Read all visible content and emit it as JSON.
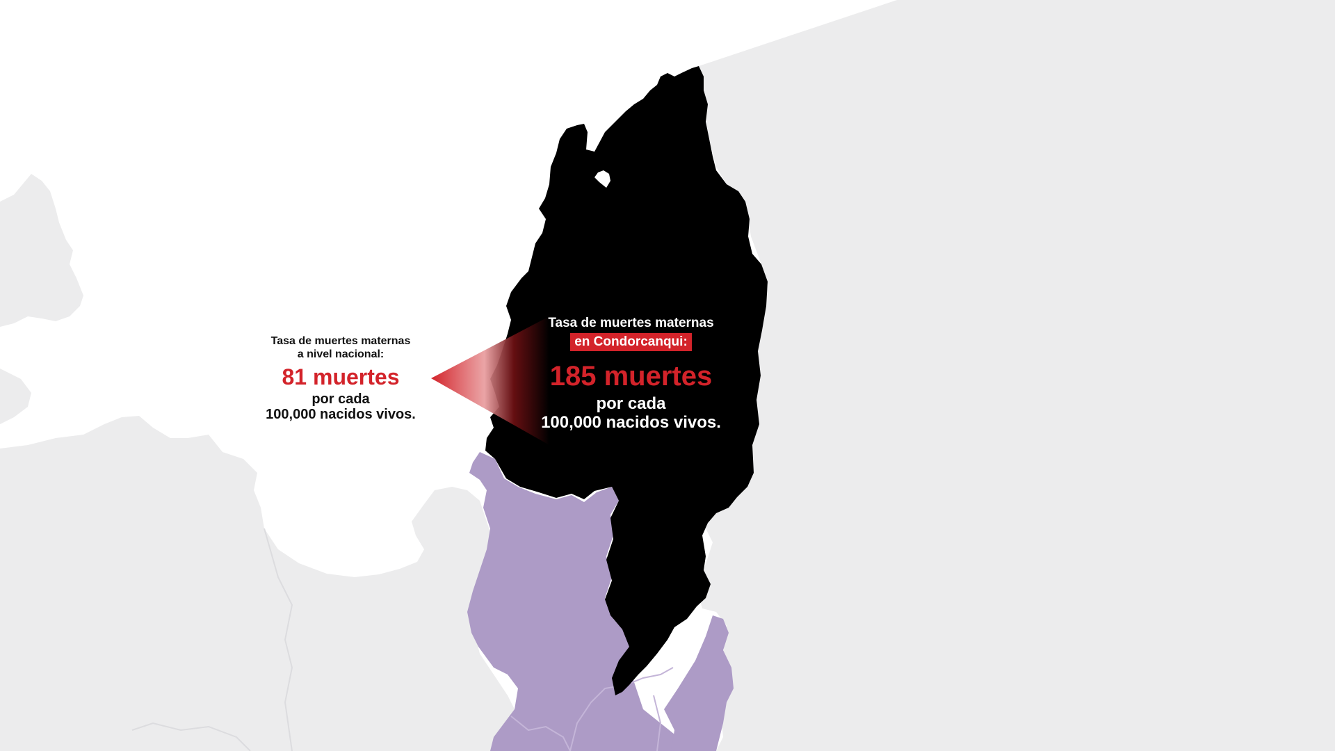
{
  "colors": {
    "background": "#ffffff",
    "land_neighbors": "#ececed",
    "border_lines": "#dcdcdf",
    "highlight_region": "#000000",
    "adjacent_regions": "#ad9bc6",
    "accent_red": "#d3232a",
    "text_dark": "#111111",
    "text_light": "#ffffff"
  },
  "regions": {
    "featured": "Condorcanqui",
    "featured_fill": "highlight_region",
    "neighbors_fill": "adjacent_regions"
  },
  "national": {
    "heading_line1": "Tasa de muertes maternas",
    "heading_line2": "a nivel nacional:",
    "number": "81 muertes",
    "unit_line1": "por cada",
    "unit_line2": "100,000 nacidos vivos."
  },
  "local": {
    "heading_line1": "Tasa de muertes maternas",
    "heading_line2": "en Condorcanqui:",
    "number": "185 muertes",
    "unit_line1": "por cada",
    "unit_line2": "100,000 nacidos vivos."
  },
  "comparison": {
    "national_value": 81,
    "local_value": 185,
    "unit": "por cada 100,000 nacidos vivos"
  }
}
